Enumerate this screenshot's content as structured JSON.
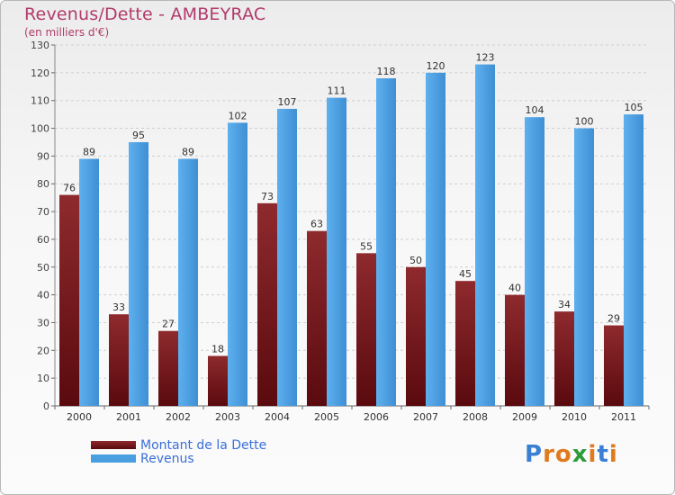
{
  "title": "Revenus/Dette - AMBEYRAC",
  "subtitle": "(en milliers d'€)",
  "logo": {
    "text": "Proxiti",
    "letters": [
      {
        "ch": "P",
        "color": "#3b7fd4"
      },
      {
        "ch": "r",
        "color": "#e07a1f"
      },
      {
        "ch": "o",
        "color": "#e07a1f"
      },
      {
        "ch": "x",
        "color": "#2e9b3a"
      },
      {
        "ch": "i",
        "color": "#e07a1f"
      },
      {
        "ch": "t",
        "color": "#3b7fd4"
      },
      {
        "ch": "i",
        "color": "#e07a1f"
      }
    ]
  },
  "chart_data": {
    "type": "bar",
    "title": "Revenus/Dette - AMBEYRAC",
    "subtitle": "(en milliers d'€)",
    "xlabel": "",
    "ylabel": "",
    "ylim": [
      0,
      130
    ],
    "yticks": [
      0,
      10,
      20,
      30,
      40,
      50,
      60,
      70,
      80,
      90,
      100,
      110,
      120,
      130
    ],
    "grid": "horizontal",
    "legend_position": "bottom-left",
    "categories": [
      "2000",
      "2001",
      "2002",
      "2003",
      "2004",
      "2005",
      "2006",
      "2007",
      "2008",
      "2009",
      "2010",
      "2011"
    ],
    "series": [
      {
        "name": "Montant de la Dette",
        "color": "#7a1a1e",
        "values": [
          76,
          33,
          27,
          18,
          73,
          63,
          55,
          50,
          45,
          40,
          34,
          29
        ]
      },
      {
        "name": "Revenus",
        "color": "#4a9fe0",
        "values": [
          89,
          95,
          89,
          102,
          107,
          111,
          118,
          120,
          123,
          104,
          100,
          105
        ]
      }
    ]
  }
}
